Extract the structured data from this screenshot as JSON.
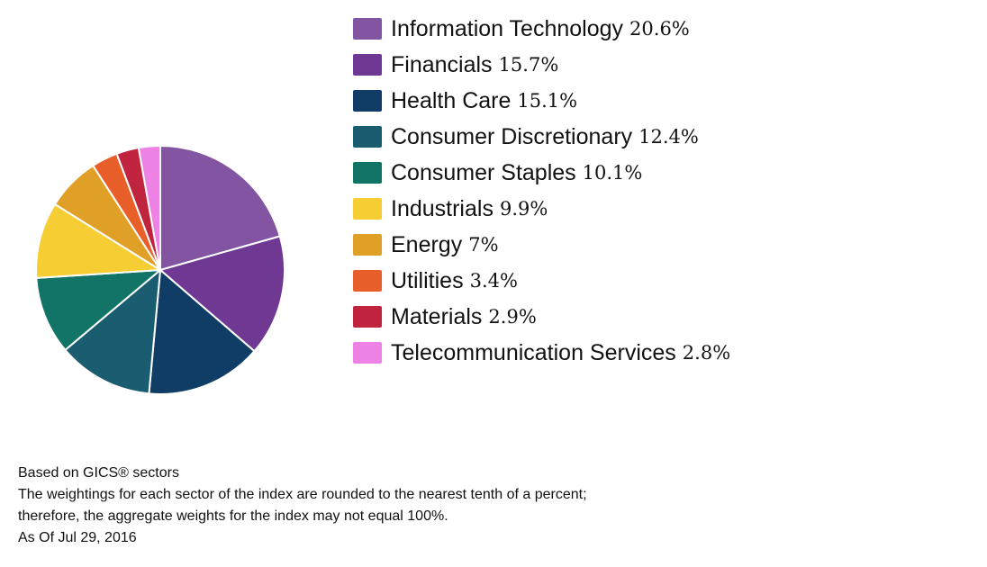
{
  "chart_data": {
    "type": "pie",
    "categories": [
      "Information Technology",
      "Financials",
      "Health Care",
      "Consumer Discretionary",
      "Consumer Staples",
      "Industrials",
      "Energy",
      "Utilities",
      "Materials",
      "Telecommunication Services"
    ],
    "values": [
      20.6,
      15.7,
      15.1,
      12.4,
      10.1,
      9.9,
      7.0,
      3.4,
      2.9,
      2.8
    ],
    "value_labels": [
      "20.6%",
      "15.7%",
      "15.1%",
      "12.4%",
      "10.1%",
      "9.9%",
      "7%",
      "3.4%",
      "2.9%",
      "2.8%"
    ],
    "colors": [
      "#8254a2",
      "#6f3893",
      "#0f3d66",
      "#1a5d70",
      "#127466",
      "#f7cd34",
      "#e0a028",
      "#e85f2a",
      "#c0243e",
      "#ee82e5"
    ],
    "legend_position": "right"
  },
  "footnotes": {
    "line1": "Based on GICS® sectors",
    "line2": "The weightings for each sector of the index are rounded to the nearest tenth of a percent;",
    "line3": "therefore, the aggregate weights for the index may not equal 100%.",
    "line4": "As Of Jul 29, 2016"
  }
}
